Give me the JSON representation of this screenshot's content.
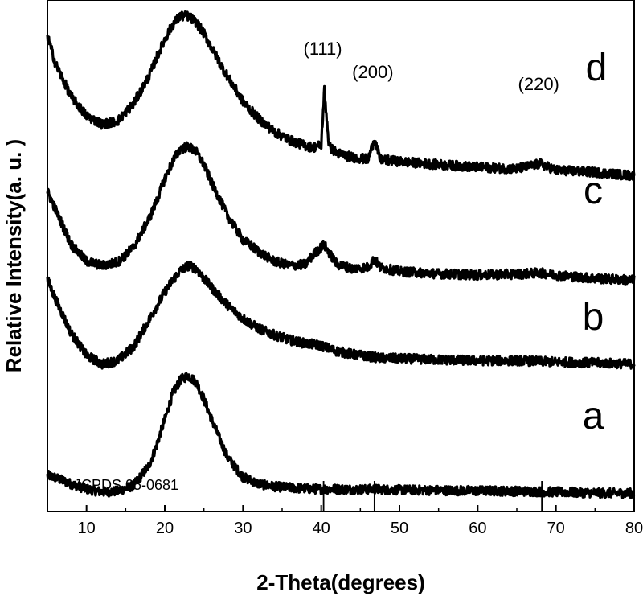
{
  "chart_data": {
    "type": "line",
    "title": "",
    "xlabel": "2-Theta(degrees)",
    "ylabel": "Relative Intensity(a. u. )",
    "xlim": [
      5,
      80
    ],
    "xticks": [
      10,
      20,
      30,
      40,
      50,
      60,
      70,
      80
    ],
    "yticks_shown": false,
    "grid": false,
    "legend": "none",
    "x": [
      5,
      6,
      8,
      10,
      12,
      14,
      16,
      18,
      19,
      20,
      21,
      22,
      23,
      24,
      25,
      26,
      28,
      30,
      32,
      34,
      36,
      38,
      39,
      40,
      40.4,
      41,
      42,
      44,
      46,
      46.8,
      47.5,
      50,
      55,
      60,
      65,
      68,
      70,
      75,
      80
    ],
    "series": [
      {
        "name": "a",
        "line_color": "#000000",
        "values": [
          0.62,
          0.57,
          0.42,
          0.3,
          0.23,
          0.25,
          0.38,
          0.85,
          1.35,
          1.92,
          2.52,
          2.85,
          2.95,
          2.8,
          2.4,
          1.92,
          1.05,
          0.58,
          0.42,
          0.36,
          0.33,
          0.31,
          0.3,
          0.3,
          0.3,
          0.3,
          0.3,
          0.29,
          0.29,
          0.3,
          0.29,
          0.28,
          0.27,
          0.26,
          0.25,
          0.24,
          0.23,
          0.21,
          0.2
        ]
      },
      {
        "name": "b",
        "line_color": "#000000",
        "values": [
          5.2,
          4.75,
          3.95,
          3.42,
          3.22,
          3.3,
          3.62,
          4.25,
          4.58,
          4.9,
          5.18,
          5.4,
          5.52,
          5.45,
          5.22,
          5.0,
          4.6,
          4.28,
          4.05,
          3.9,
          3.78,
          3.7,
          3.68,
          3.65,
          3.62,
          3.58,
          3.52,
          3.45,
          3.4,
          3.38,
          3.36,
          3.35,
          3.32,
          3.3,
          3.3,
          3.28,
          3.27,
          3.25,
          3.22
        ]
      },
      {
        "name": "c",
        "line_color": "#000000",
        "values": [
          7.25,
          6.85,
          6.02,
          5.62,
          5.52,
          5.6,
          5.95,
          6.62,
          7.05,
          7.55,
          7.95,
          8.25,
          8.3,
          8.18,
          7.88,
          7.45,
          6.7,
          6.12,
          5.85,
          5.62,
          5.52,
          5.55,
          5.78,
          5.95,
          6.0,
          5.82,
          5.55,
          5.45,
          5.48,
          5.68,
          5.48,
          5.38,
          5.33,
          5.3,
          5.32,
          5.35,
          5.3,
          5.22,
          5.18
        ]
      },
      {
        "name": "d",
        "line_color": "#000000",
        "values": [
          10.9,
          10.25,
          9.48,
          9.02,
          8.82,
          8.9,
          9.3,
          9.95,
          10.4,
          10.8,
          11.15,
          11.35,
          11.35,
          11.2,
          10.95,
          10.6,
          9.95,
          9.35,
          8.95,
          8.65,
          8.45,
          8.32,
          8.28,
          8.35,
          9.62,
          8.3,
          8.15,
          8.05,
          8.0,
          8.48,
          8.0,
          7.95,
          7.88,
          7.82,
          7.78,
          7.9,
          7.75,
          7.7,
          7.62
        ]
      }
    ],
    "series_labels": [
      "a",
      "b",
      "c",
      "d"
    ],
    "peak_annotations": [
      {
        "label": "(111)",
        "x": 40.4
      },
      {
        "label": "(200)",
        "x": 46.8
      },
      {
        "label": "(220)",
        "x": 68.0
      }
    ],
    "reference": {
      "label": "JCPDS  05-0681",
      "positions": [
        40.3,
        46.8,
        68.2
      ]
    }
  }
}
